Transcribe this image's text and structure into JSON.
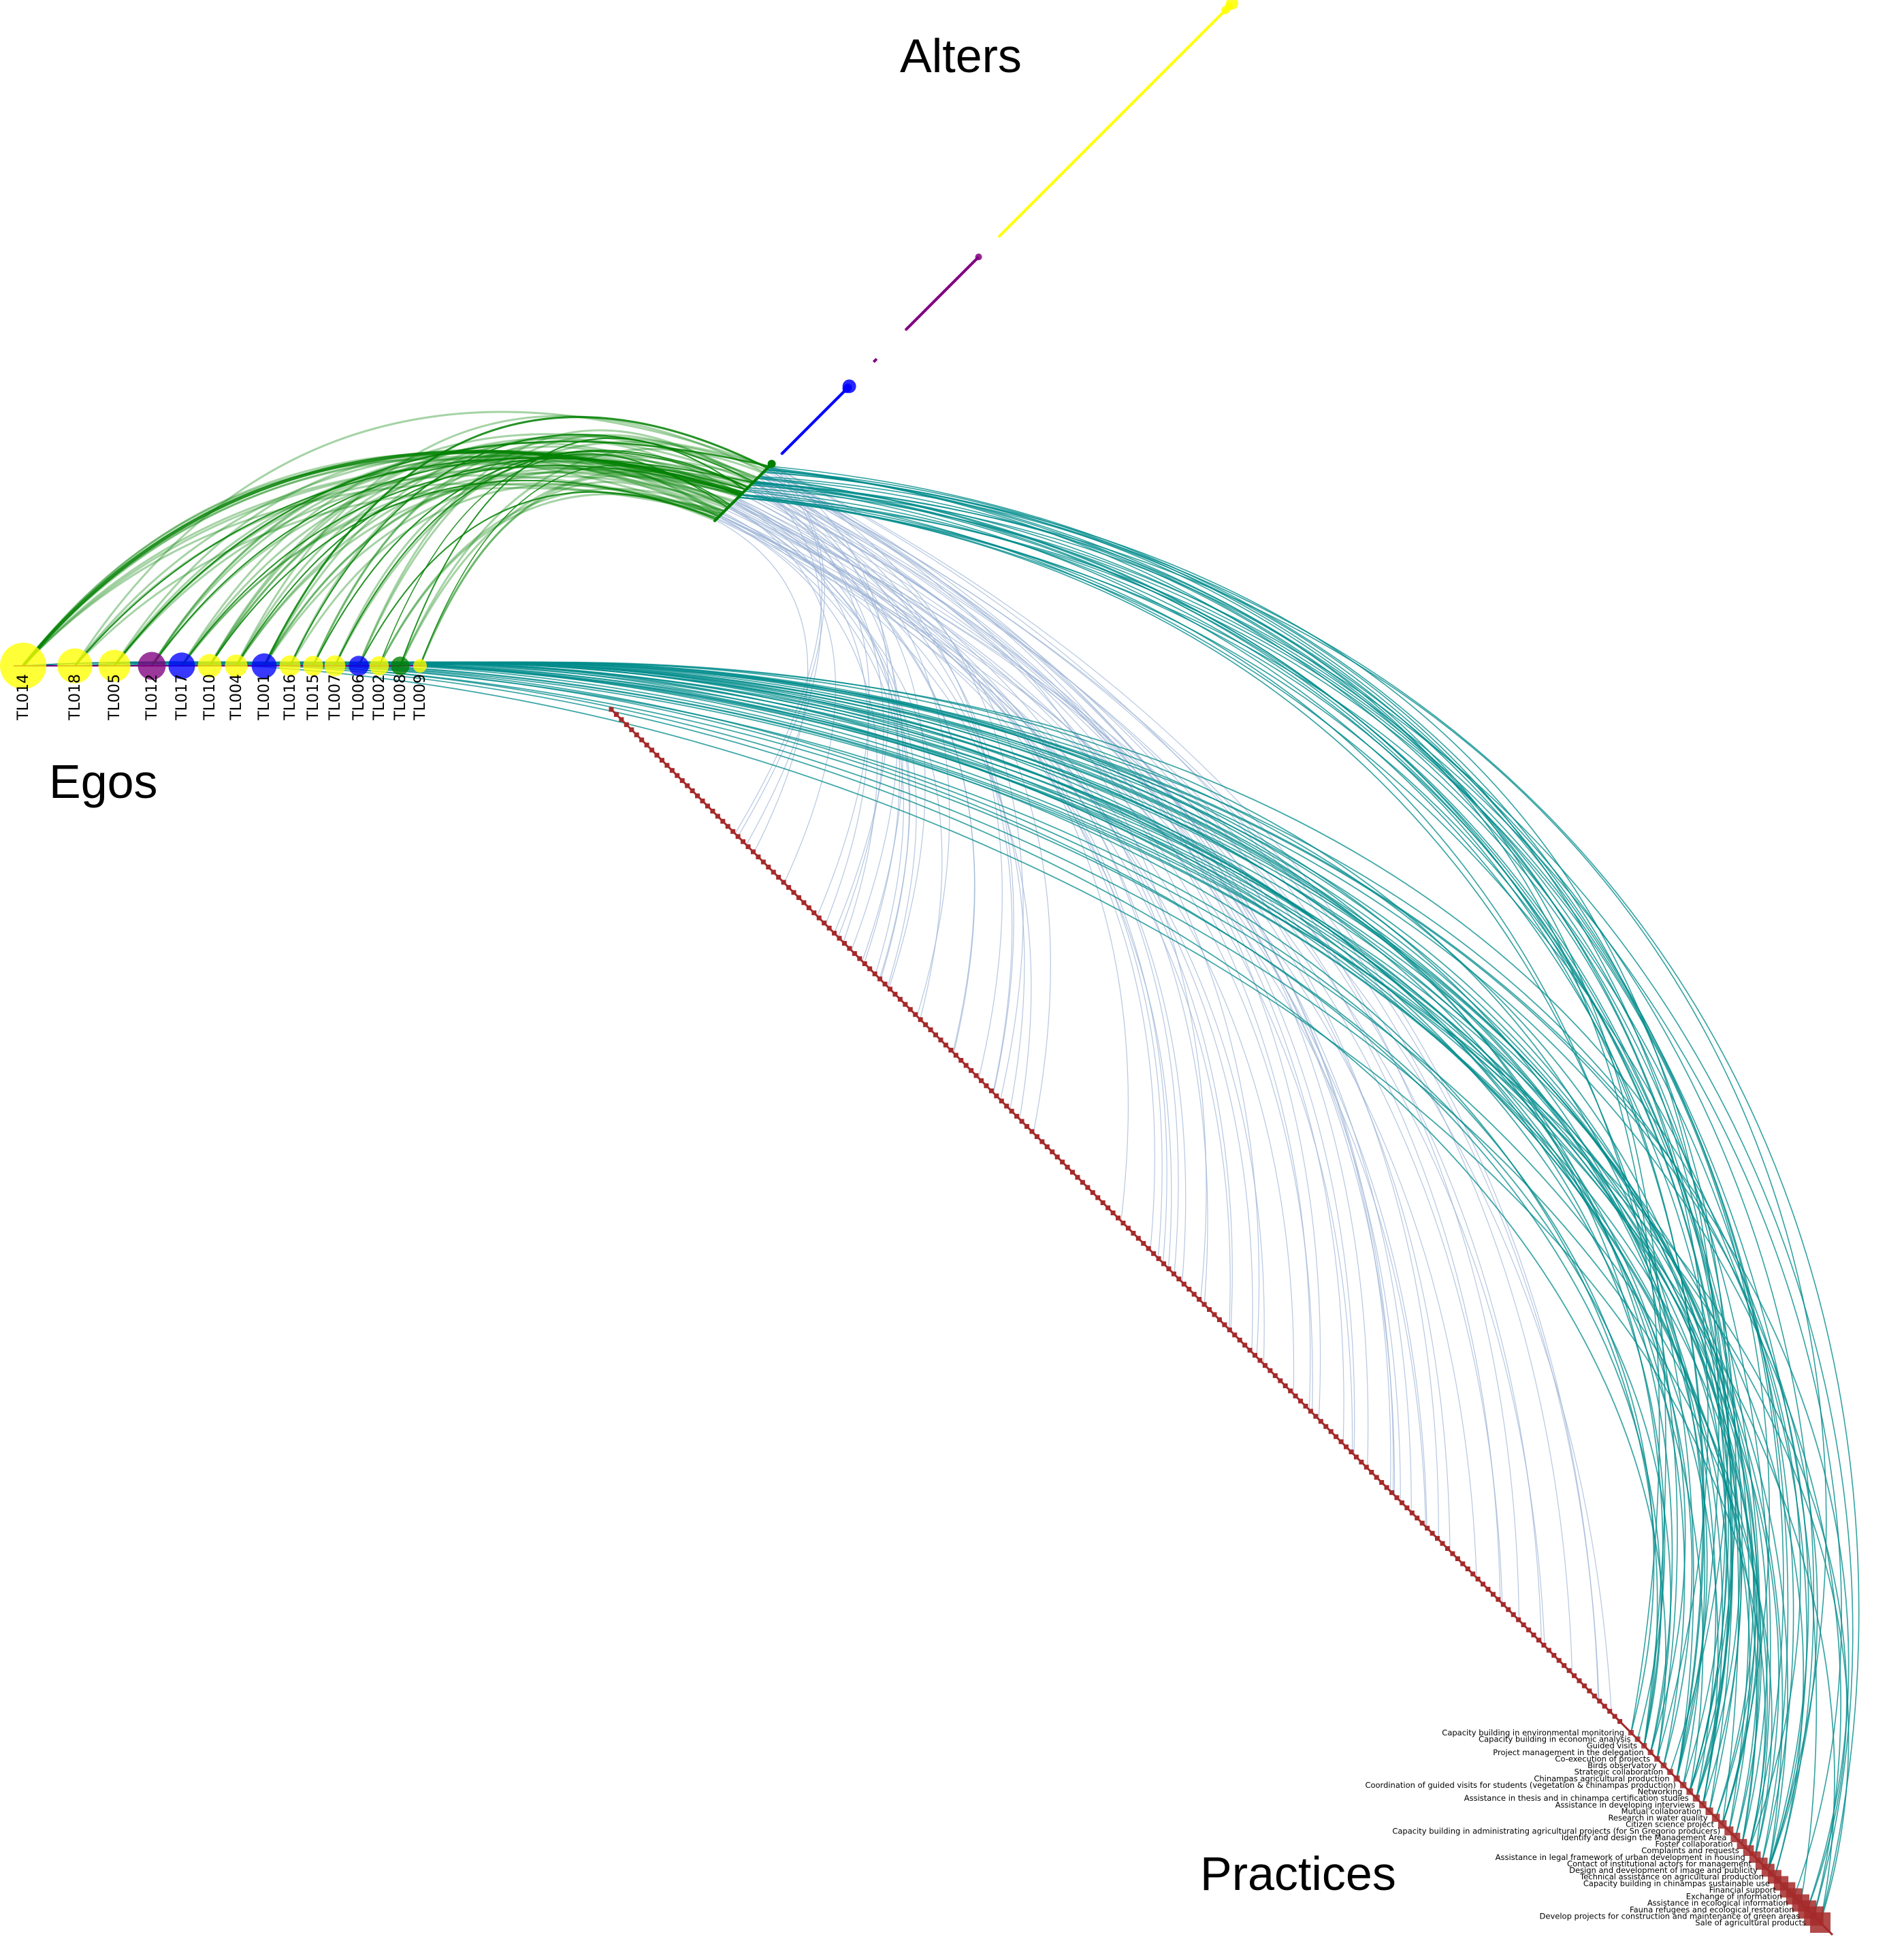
{
  "titles": {
    "alters": "Alters",
    "egos": "Egos",
    "practices": "Practices"
  },
  "colors": {
    "yellow": "#ffff00",
    "purple": "#800080",
    "blue": "#0000ff",
    "green": "#008000",
    "practice": "#a52a2a",
    "ego_alter_edge": "#008000",
    "ego_practice_edge": "#008b8b",
    "alter_practice_edge": "#9db4d6"
  },
  "egos": [
    {
      "id": "TL014",
      "color": "yellow",
      "size": 1.0
    },
    {
      "id": "TL018",
      "color": "yellow",
      "size": 0.72
    },
    {
      "id": "TL005",
      "color": "yellow",
      "size": 0.65
    },
    {
      "id": "TL012",
      "color": "purple",
      "size": 0.55
    },
    {
      "id": "TL017",
      "color": "blue",
      "size": 0.52
    },
    {
      "id": "TL010",
      "color": "yellow",
      "size": 0.45
    },
    {
      "id": "TL004",
      "color": "yellow",
      "size": 0.42
    },
    {
      "id": "TL001",
      "color": "blue",
      "size": 0.48
    },
    {
      "id": "TL016",
      "color": "yellow",
      "size": 0.38
    },
    {
      "id": "TL015",
      "color": "yellow",
      "size": 0.36
    },
    {
      "id": "TL007",
      "color": "yellow",
      "size": 0.38
    },
    {
      "id": "TL006",
      "color": "blue",
      "size": 0.36
    },
    {
      "id": "TL002",
      "color": "yellow",
      "size": 0.34
    },
    {
      "id": "TL008",
      "color": "green",
      "size": 0.32
    },
    {
      "id": "TL009",
      "color": "yellow",
      "size": 0.2
    }
  ],
  "alter_groups": [
    {
      "color": "yellow",
      "count": 70
    },
    {
      "color": "purple",
      "count": 35
    },
    {
      "color": "blue",
      "count": 50
    },
    {
      "color": "green",
      "count": 40
    }
  ],
  "practices": [
    "Capacity building in environmental monitoring",
    "Capacity building in economic analysis",
    "Guided visits",
    "Project management in the delegation",
    "Co-execution of projects",
    "Birds observatory",
    "Strategic collaboration",
    "Chinampas agricultural production",
    "Coordination of guided visits for students (vegetation & chinampas production)",
    "Networking",
    "Assistance in thesis and in chinampa certification studies",
    "Assistance in developing interviews",
    "Mutual collaboration",
    "Research in water quality",
    "Citizen science project",
    "Capacity building in administrating agricultural projects (for Sn Gregorio producers)",
    "Identify and design the Management Area",
    "Foster collaboration",
    "Complaints and requests",
    "Assistance in legal framework of urban development in housing",
    "Contact of institutional actors for management",
    "Design and development of image and publicity",
    "Technical assistance on agricultural production",
    "Capacity building in chinampas sustainable use",
    "Financial support",
    "Exchange of information",
    "Assistance in ecological information",
    "Fauna refugees and ecological restoration",
    "Develop projects for construction and maintenance of green areas",
    "Sale of agricultural products"
  ]
}
